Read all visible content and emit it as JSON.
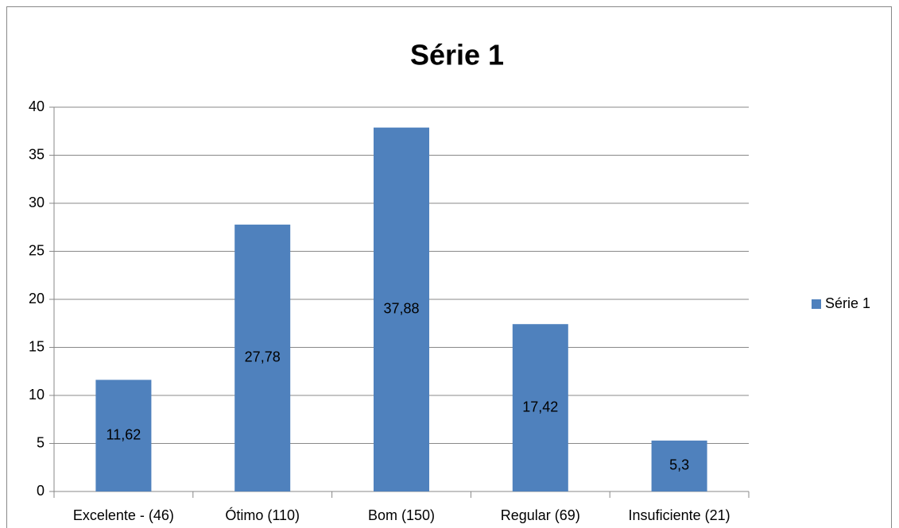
{
  "chart_data": {
    "type": "bar",
    "title": "Série 1",
    "categories": [
      "Excelente - (46)",
      "Ótimo (110)",
      "Bom (150)",
      "Regular (69)",
      "Insuficiente (21)"
    ],
    "series": [
      {
        "name": "Série 1",
        "color": "#4f81bd",
        "values": [
          11.62,
          27.78,
          37.88,
          17.42,
          5.3
        ],
        "value_labels": [
          "11,62",
          "27,78",
          "37,88",
          "17,42",
          "5,3"
        ]
      }
    ],
    "ylim": [
      0,
      40
    ],
    "yticks": [
      0,
      5,
      10,
      15,
      20,
      25,
      30,
      35,
      40
    ],
    "grid": true,
    "legend": "right"
  }
}
